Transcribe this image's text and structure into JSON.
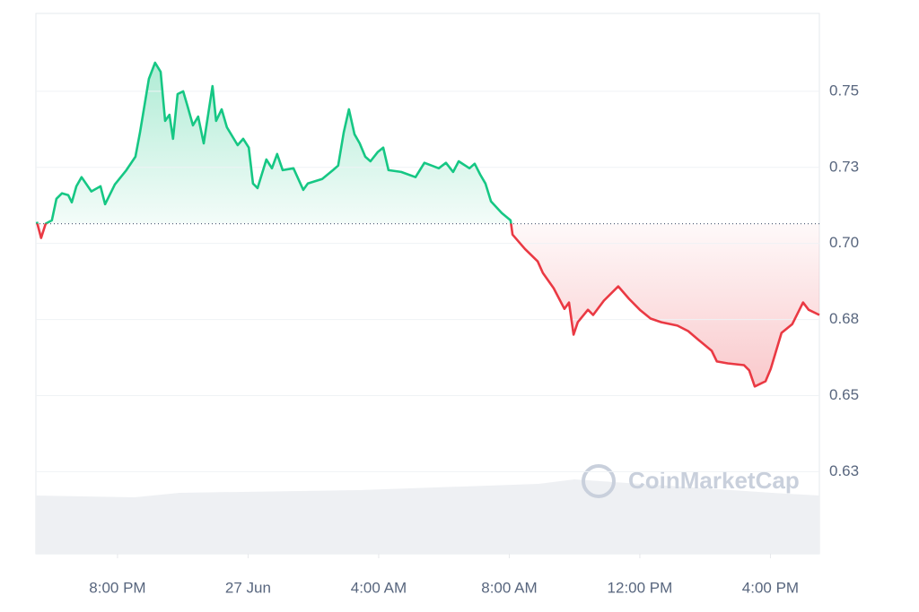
{
  "chart_data": {
    "type": "line",
    "watermark": "CoinMarketCap",
    "x": [
      -6.47,
      -6.34,
      -6.2,
      -6.01,
      -5.87,
      -5.7,
      -5.51,
      -5.4,
      -5.26,
      -5.1,
      -4.8,
      -4.52,
      -4.38,
      -4.08,
      -3.73,
      -3.45,
      -3.31,
      -3.04,
      -2.85,
      -2.68,
      -2.54,
      -2.41,
      -2.3,
      -2.16,
      -1.99,
      -1.86,
      -1.69,
      -1.53,
      -1.36,
      -1.09,
      -0.98,
      -0.81,
      -0.65,
      -0.32,
      -0.15,
      0.02,
      0.15,
      0.29,
      0.56,
      0.73,
      0.89,
      1.06,
      1.39,
      1.69,
      1.83,
      2.27,
      2.6,
      2.76,
      2.93,
      3.09,
      3.26,
      3.42,
      3.59,
      3.75,
      3.97,
      4.14,
      4.3,
      4.69,
      5.13,
      5.4,
      5.84,
      6.06,
      6.28,
      6.45,
      6.78,
      6.94,
      7.11,
      7.27,
      7.44,
      7.77,
      8.04,
      8.1,
      8.48,
      8.87,
      9.03,
      9.36,
      9.69,
      9.83,
      9.97,
      10.1,
      10.41,
      10.57,
      10.9,
      11.34,
      11.67,
      12.0,
      12.33,
      12.66,
      13.15,
      13.48,
      13.81,
      14.2,
      14.36,
      14.69,
      15.19,
      15.35,
      15.52,
      15.85,
      16.01,
      16.34,
      16.67,
      17.0,
      17.17,
      17.5
    ],
    "values": [
      0.7071,
      0.7018,
      0.7065,
      0.7076,
      0.7147,
      0.7165,
      0.7159,
      0.7135,
      0.7188,
      0.7218,
      0.7171,
      0.7188,
      0.7129,
      0.7194,
      0.7241,
      0.7285,
      0.7365,
      0.7541,
      0.7594,
      0.7564,
      0.7403,
      0.7423,
      0.7344,
      0.7491,
      0.75,
      0.7453,
      0.7388,
      0.7417,
      0.7329,
      0.7517,
      0.7403,
      0.7441,
      0.7382,
      0.7323,
      0.7344,
      0.7315,
      0.7197,
      0.7182,
      0.7276,
      0.7247,
      0.7294,
      0.7241,
      0.7247,
      0.7176,
      0.7197,
      0.7212,
      0.7241,
      0.7256,
      0.7365,
      0.7441,
      0.7359,
      0.7329,
      0.7285,
      0.727,
      0.73,
      0.7315,
      0.7241,
      0.7235,
      0.7218,
      0.7265,
      0.7247,
      0.7265,
      0.7235,
      0.727,
      0.7247,
      0.7262,
      0.7226,
      0.7197,
      0.7138,
      0.71,
      0.7076,
      0.7029,
      0.6982,
      0.6941,
      0.6903,
      0.6853,
      0.6785,
      0.6806,
      0.67,
      0.6741,
      0.6782,
      0.6765,
      0.6812,
      0.6859,
      0.6818,
      0.6782,
      0.6753,
      0.6741,
      0.673,
      0.6712,
      0.6682,
      0.6647,
      0.6612,
      0.6606,
      0.66,
      0.6583,
      0.653,
      0.6547,
      0.6588,
      0.6706,
      0.6735,
      0.6806,
      0.6782,
      0.6765
    ],
    "baseline": 0.7065,
    "up_color": "#16c784",
    "down_color": "#ea3943",
    "xlim": [
      -6.5,
      17.5
    ],
    "xticks": [
      {
        "value": -4,
        "label": "8:00 PM"
      },
      {
        "value": 0,
        "label": "27 Jun"
      },
      {
        "value": 4,
        "label": "4:00 AM"
      },
      {
        "value": 8,
        "label": "8:00 AM"
      },
      {
        "value": 12,
        "label": "12:00 PM"
      },
      {
        "value": 16,
        "label": "4:00 PM"
      }
    ],
    "ylim": [
      0.598,
      0.7756
    ],
    "yticks": [
      {
        "value": 0.625,
        "label": "0.63"
      },
      {
        "value": 0.65,
        "label": "0.65"
      },
      {
        "value": 0.675,
        "label": "0.68"
      },
      {
        "value": 0.7,
        "label": "0.70"
      },
      {
        "value": 0.725,
        "label": "0.73"
      },
      {
        "value": 0.75,
        "label": "0.75"
      }
    ],
    "grid": true
  }
}
